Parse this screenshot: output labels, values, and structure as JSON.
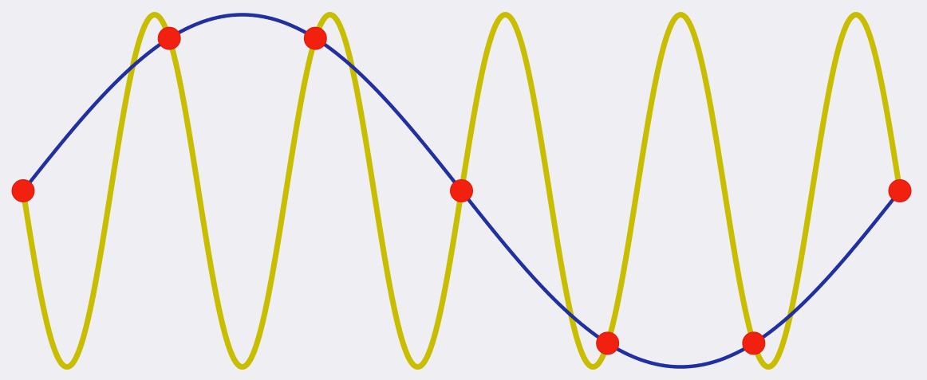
{
  "colors": {
    "background": "#efeff3",
    "high_frequency_wave": "#c9bd00",
    "low_frequency_wave": "#2130a0",
    "sample_point": "#f2200f",
    "sample_point_stroke": "#d81a0c"
  },
  "waves": {
    "low_frequency": {
      "cycles": 1,
      "phase": "sine"
    },
    "high_frequency": {
      "cycles": 5,
      "phase": "negative-sine"
    }
  },
  "sample_points": {
    "count": 7
  }
}
